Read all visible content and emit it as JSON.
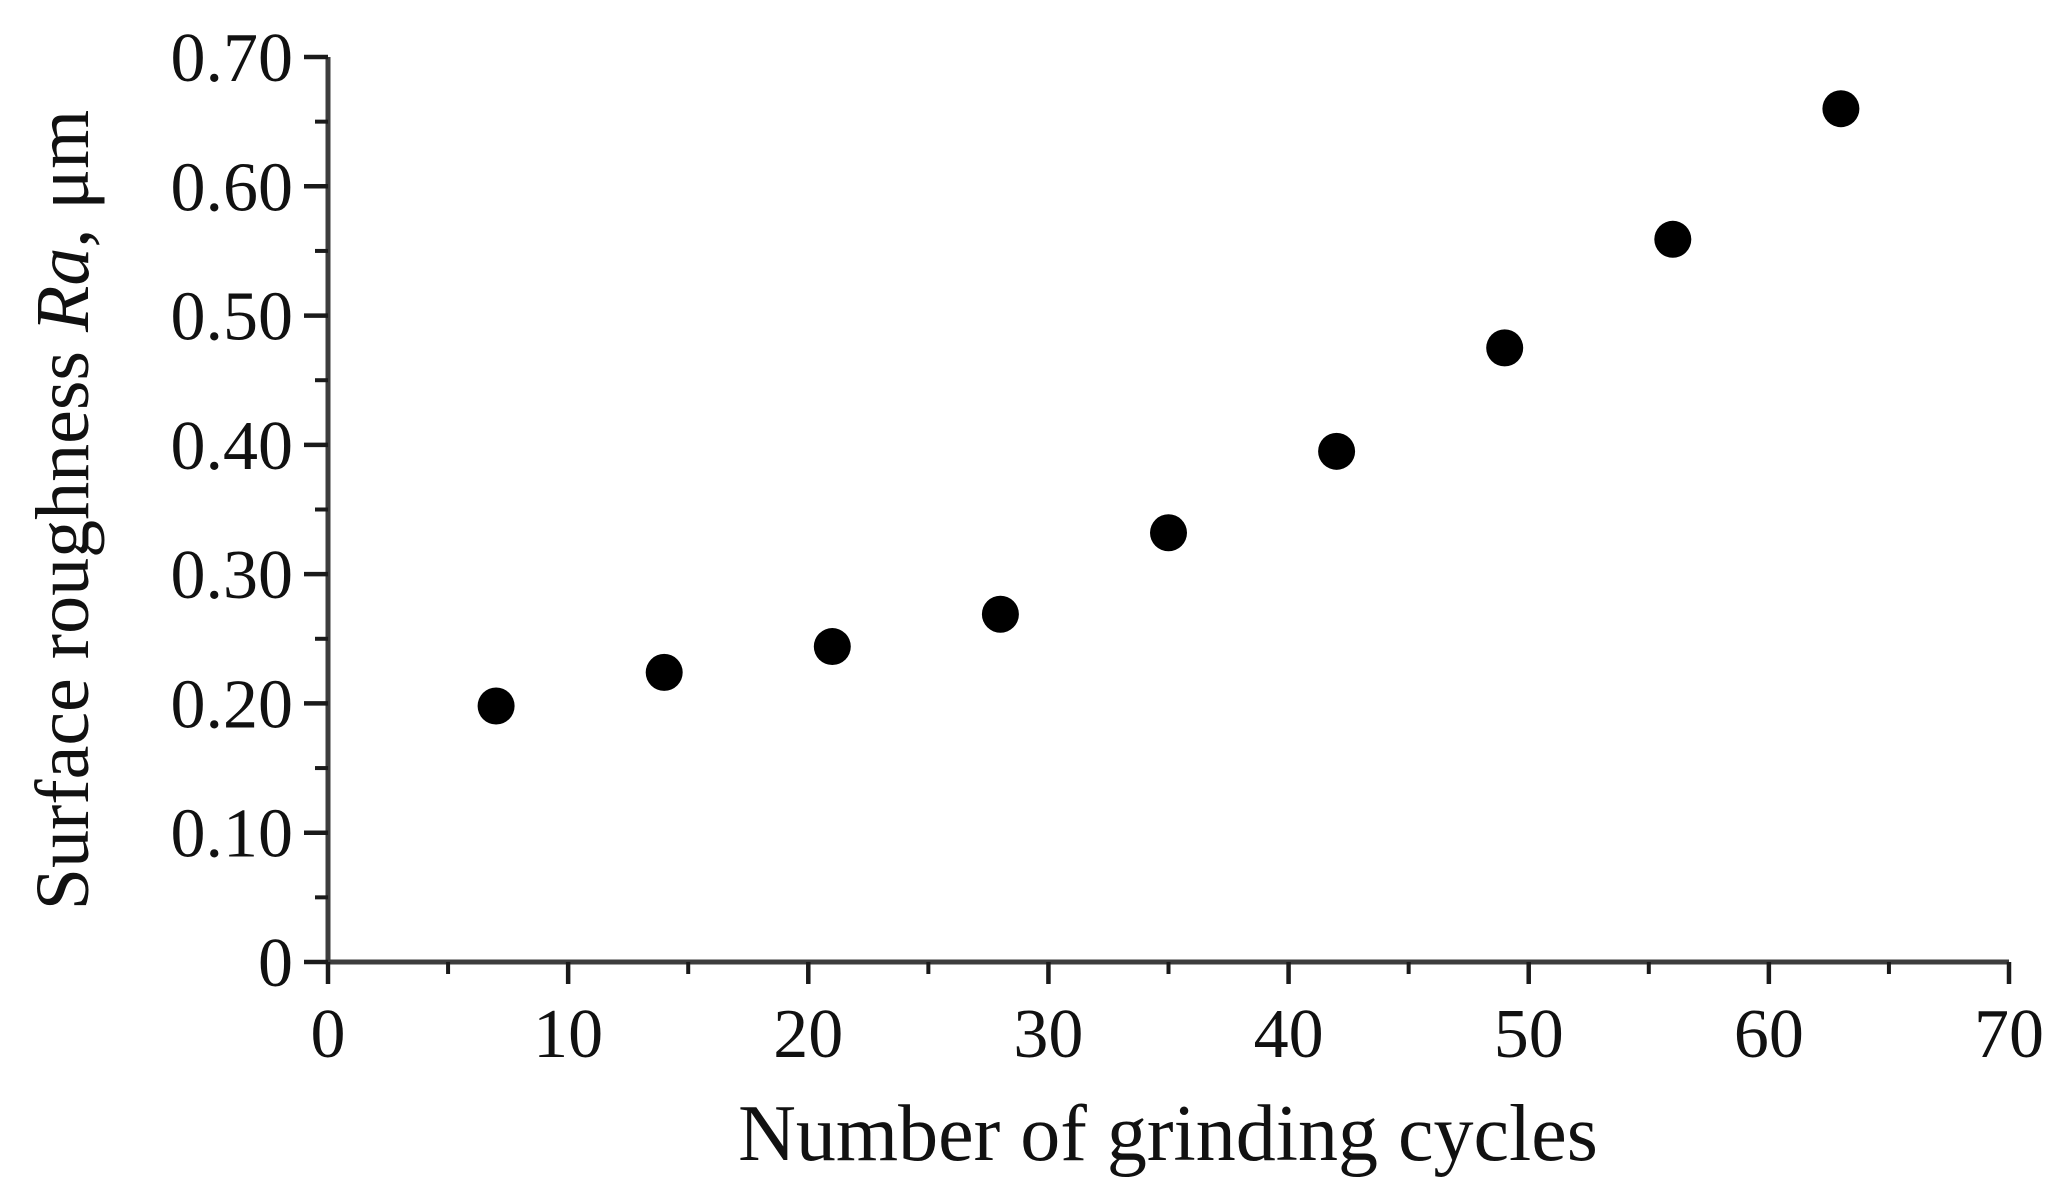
{
  "chart_data": {
    "type": "scatter",
    "title": "",
    "xlabel": "Number of grinding cycles",
    "ylabel_prefix": "Surface roughness ",
    "ylabel_italic": "Ra",
    "ylabel_suffix": ", μm",
    "x": [
      7,
      14,
      21,
      28,
      35,
      42,
      49,
      56,
      63
    ],
    "y": [
      0.198,
      0.224,
      0.244,
      0.269,
      0.332,
      0.395,
      0.475,
      0.559,
      0.66
    ],
    "xlim": [
      0,
      70
    ],
    "ylim": [
      0,
      0.7
    ],
    "x_major_ticks": [
      0,
      10,
      20,
      30,
      40,
      50,
      60,
      70
    ],
    "x_tick_labels": [
      "0",
      "10",
      "20",
      "30",
      "40",
      "50",
      "60",
      "70"
    ],
    "x_minor_step": 5,
    "y_major_ticks": [
      0,
      0.1,
      0.2,
      0.3,
      0.4,
      0.5,
      0.6,
      0.7
    ],
    "y_tick_labels": [
      "0",
      "0.10",
      "0.20",
      "0.30",
      "0.40",
      "0.50",
      "0.60",
      "0.70"
    ],
    "y_minor_step": 0.05,
    "grid": "off",
    "legend": "none",
    "marker_shape": "filled-circle",
    "marker_radius_px": 18.5,
    "marker_color": "#000000",
    "axis_color": "#3d3d3d",
    "tick_color": "#1a1a1a",
    "text_color": "#111111",
    "background_color": "#ffffff"
  }
}
